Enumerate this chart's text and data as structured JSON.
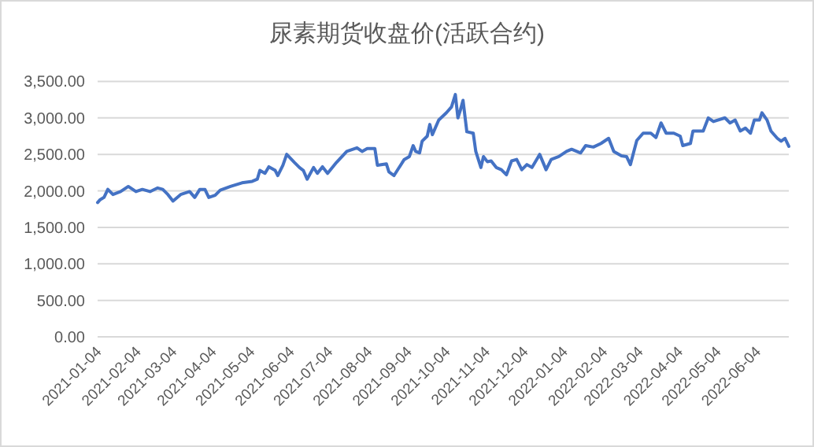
{
  "chart_data": {
    "type": "line",
    "title": "尿素期货收盘价(活跃合约)",
    "x": [
      "2021-01-04",
      "2021-01-06",
      "2021-01-09",
      "2021-01-12",
      "2021-01-16",
      "2021-01-22",
      "2021-01-28",
      "2021-02-03",
      "2021-02-08",
      "2021-02-14",
      "2021-02-20",
      "2021-02-24",
      "2021-02-28",
      "2021-03-04",
      "2021-03-10",
      "2021-03-17",
      "2021-03-21",
      "2021-03-25",
      "2021-03-29",
      "2021-04-01",
      "2021-04-06",
      "2021-04-10",
      "2021-04-18",
      "2021-04-27",
      "2021-05-05",
      "2021-05-09",
      "2021-05-11",
      "2021-05-15",
      "2021-05-18",
      "2021-05-23",
      "2021-05-25",
      "2021-05-29",
      "2021-06-01",
      "2021-06-07",
      "2021-06-11",
      "2021-06-14",
      "2021-06-17",
      "2021-06-22",
      "2021-06-25",
      "2021-06-29",
      "2021-07-03",
      "2021-07-10",
      "2021-07-18",
      "2021-07-26",
      "2021-07-30",
      "2021-08-03",
      "2021-08-09",
      "2021-08-11",
      "2021-08-18",
      "2021-08-20",
      "2021-08-24",
      "2021-09-01",
      "2021-09-05",
      "2021-09-08",
      "2021-09-10",
      "2021-09-13",
      "2021-09-15",
      "2021-09-19",
      "2021-09-21",
      "2021-09-23",
      "2021-09-28",
      "2021-10-04",
      "2021-10-08",
      "2021-10-11",
      "2021-10-13",
      "2021-10-15",
      "2021-10-17",
      "2021-10-20",
      "2021-10-25",
      "2021-10-27",
      "2021-10-31",
      "2021-11-02",
      "2021-11-05",
      "2021-11-08",
      "2021-11-12",
      "2021-11-16",
      "2021-11-20",
      "2021-11-24",
      "2021-11-28",
      "2021-12-02",
      "2021-12-06",
      "2021-12-10",
      "2021-12-16",
      "2021-12-21",
      "2021-12-25",
      "2021-12-31",
      "2022-01-06",
      "2022-01-10",
      "2022-01-17",
      "2022-01-21",
      "2022-01-27",
      "2022-02-02",
      "2022-02-08",
      "2022-02-12",
      "2022-02-18",
      "2022-02-22",
      "2022-02-25",
      "2022-03-02",
      "2022-03-07",
      "2022-03-13",
      "2022-03-17",
      "2022-03-21",
      "2022-03-25",
      "2022-03-31",
      "2022-04-05",
      "2022-04-07",
      "2022-04-13",
      "2022-04-15",
      "2022-04-23",
      "2022-04-27",
      "2022-05-01",
      "2022-05-10",
      "2022-05-14",
      "2022-05-18",
      "2022-05-22",
      "2022-05-26",
      "2022-05-30",
      "2022-06-02",
      "2022-06-06",
      "2022-06-08",
      "2022-06-12",
      "2022-06-15",
      "2022-06-20",
      "2022-06-23",
      "2022-06-26",
      "2022-06-29"
    ],
    "series": [
      {
        "color": "#4472c4",
        "values": [
          1840,
          1880,
          1910,
          2020,
          1950,
          1990,
          2060,
          1990,
          2020,
          1990,
          2040,
          2020,
          1950,
          1860,
          1950,
          1990,
          1910,
          2020,
          2020,
          1910,
          1940,
          2010,
          2060,
          2110,
          2130,
          2160,
          2280,
          2240,
          2330,
          2280,
          2210,
          2350,
          2500,
          2390,
          2320,
          2280,
          2160,
          2320,
          2240,
          2330,
          2240,
          2390,
          2540,
          2590,
          2540,
          2580,
          2580,
          2350,
          2370,
          2260,
          2210,
          2430,
          2470,
          2620,
          2540,
          2520,
          2680,
          2750,
          2910,
          2770,
          2970,
          3070,
          3150,
          3320,
          3000,
          3110,
          3240,
          2810,
          2790,
          2540,
          2320,
          2470,
          2400,
          2410,
          2320,
          2290,
          2220,
          2410,
          2430,
          2290,
          2360,
          2320,
          2500,
          2290,
          2430,
          2470,
          2540,
          2570,
          2520,
          2620,
          2600,
          2650,
          2720,
          2540,
          2480,
          2470,
          2360,
          2690,
          2790,
          2790,
          2730,
          2930,
          2790,
          2790,
          2750,
          2620,
          2650,
          2820,
          2820,
          3000,
          2950,
          3000,
          2930,
          2970,
          2820,
          2860,
          2790,
          2970,
          2970,
          3070,
          2970,
          2820,
          2720,
          2680,
          2720,
          2610
        ]
      }
    ],
    "xlim": [
      "2021-01-04",
      "2022-06-29"
    ],
    "xticks": [
      "2021-01-04",
      "2021-02-04",
      "2021-03-04",
      "2021-04-04",
      "2021-05-04",
      "2021-06-04",
      "2021-07-04",
      "2021-08-04",
      "2021-09-04",
      "2021-10-04",
      "2021-11-04",
      "2021-12-04",
      "2022-01-04",
      "2022-02-04",
      "2022-03-04",
      "2022-04-04",
      "2022-05-04",
      "2022-06-04"
    ],
    "ylim": [
      0,
      3500
    ],
    "yticks": [
      {
        "value": 0,
        "label": "0.00"
      },
      {
        "value": 500,
        "label": "500.00"
      },
      {
        "value": 1000,
        "label": "1,000.00"
      },
      {
        "value": 1500,
        "label": "1,500.00"
      },
      {
        "value": 2000,
        "label": "2,000.00"
      },
      {
        "value": 2500,
        "label": "2,500.00"
      },
      {
        "value": 3000,
        "label": "3,000.00"
      },
      {
        "value": 3500,
        "label": "3,500.00"
      }
    ],
    "grid": "y",
    "marker": "none",
    "line_style": "solid"
  }
}
